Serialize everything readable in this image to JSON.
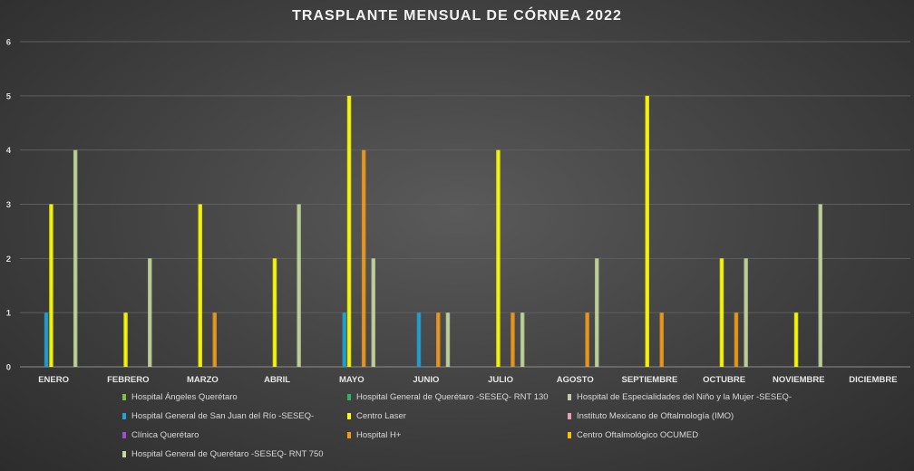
{
  "chart_data": {
    "type": "bar",
    "title": "TRASPLANTE MENSUAL DE CÓRNEA 2022",
    "categories": [
      "ENERO",
      "FEBRERO",
      "MARZO",
      "ABRIL",
      "MAYO",
      "JUNIO",
      "JULIO",
      "AGOSTO",
      "SEPTIEMBRE",
      "OCTUBRE",
      "NOVIEMBRE",
      "DICIEMBRE"
    ],
    "ylim": [
      0,
      6
    ],
    "yticks": [
      "0",
      "1",
      "2",
      "3",
      "4",
      "5",
      "6"
    ],
    "grid": true,
    "legend_position": "bottom",
    "series": [
      {
        "name": "Hospital Ángeles Querétaro",
        "color": "#7cc242",
        "values": [
          0,
          0,
          0,
          0,
          0,
          0,
          0,
          0,
          0,
          0,
          0,
          0
        ]
      },
      {
        "name": "Hospital General de Querétaro -SESEQ- RNT 130",
        "color": "#2fb36a",
        "values": [
          0,
          0,
          0,
          0,
          0,
          0,
          0,
          0,
          0,
          0,
          0,
          0
        ]
      },
      {
        "name": "Hospital de Especialidades del Niño y la Mujer -SESEQ-",
        "color": "#c9c9b0",
        "values": [
          0,
          0,
          0,
          0,
          0,
          0,
          0,
          0,
          0,
          0,
          0,
          0
        ]
      },
      {
        "name": "Hospital General de San Juan del Río -SESEQ-",
        "color": "#1fa3d8",
        "values": [
          1,
          0,
          0,
          0,
          1,
          1,
          0,
          0,
          0,
          0,
          0,
          0
        ]
      },
      {
        "name": "Centro Laser",
        "color": "#ffff00",
        "values": [
          3,
          1,
          3,
          2,
          5,
          0,
          4,
          0,
          5,
          2,
          1,
          0
        ]
      },
      {
        "name": "Instituto Mexicano de Oftalmología (IMO)",
        "color": "#e8a0b4",
        "values": [
          0,
          0,
          0,
          0,
          0,
          0,
          0,
          0,
          0,
          0,
          0,
          0
        ]
      },
      {
        "name": "Clínica Querétaro",
        "color": "#9b4fd0",
        "values": [
          0,
          0,
          0,
          0,
          0,
          0,
          0,
          0,
          0,
          0,
          0,
          0
        ]
      },
      {
        "name": "Hospital H+",
        "color": "#f29a1a",
        "values": [
          0,
          0,
          1,
          0,
          4,
          1,
          1,
          1,
          1,
          1,
          0,
          0
        ]
      },
      {
        "name": "Centro Oftalmológico OCUMED",
        "color": "#ffc000",
        "values": [
          0,
          0,
          0,
          0,
          0,
          0,
          0,
          0,
          0,
          0,
          0,
          0
        ]
      },
      {
        "name": "Hospital General de Querétaro -SESEQ- RNT 750",
        "color": "#c4d79b",
        "values": [
          4,
          2,
          0,
          3,
          2,
          1,
          1,
          2,
          0,
          2,
          3,
          0
        ]
      }
    ]
  }
}
